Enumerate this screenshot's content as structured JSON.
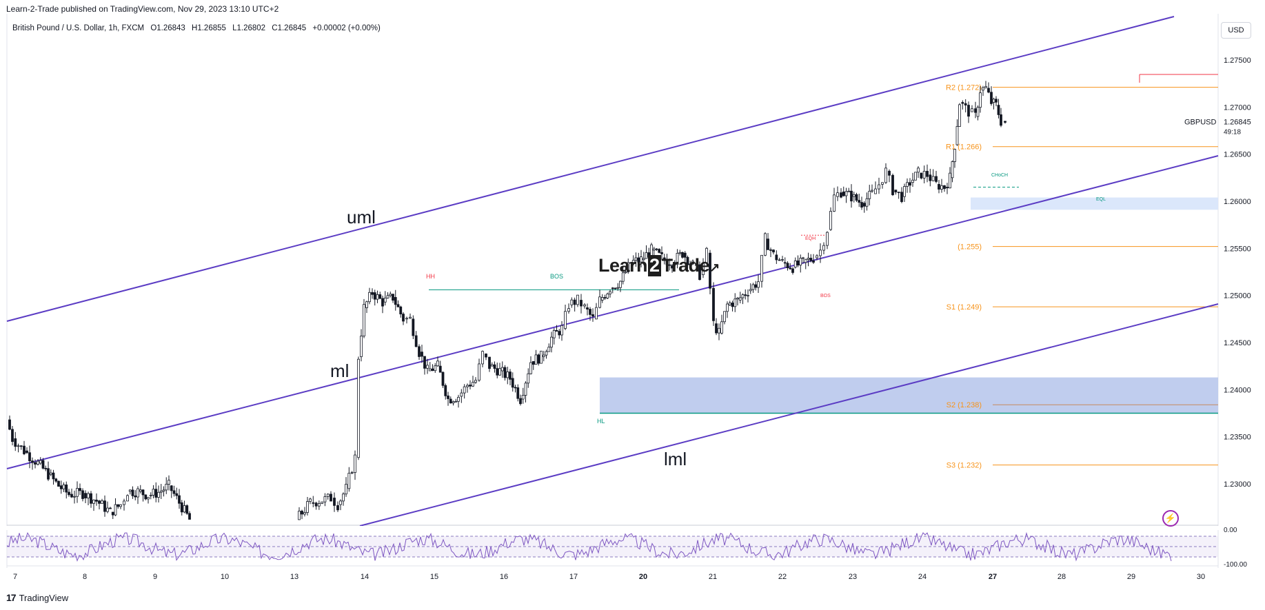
{
  "header": {
    "publisher": "Learn-2-Trade published on TradingView.com, Nov 29, 2023 13:10 UTC+2",
    "symbol": "British Pound / U.S. Dollar, 1h, FXCM",
    "open": "O1.26843",
    "high": "H1.26855",
    "low": "L1.26802",
    "close": "C1.26845",
    "change": "+0.00002 (+0.00%)"
  },
  "currency_button": "USD",
  "footer": {
    "logo_mark": "17",
    "logo_text": "TradingView"
  },
  "brand": {
    "pre": "Learn",
    "two": "2",
    "post": "Trade"
  },
  "icons": {
    "alert": "lightning-icon",
    "logo": "tradingview-logo-icon"
  },
  "colors": {
    "channel": "#5b3cc4",
    "pivot": "#f7931a",
    "structure": "#089981",
    "bearish_marker": "#f23645",
    "zone": "#b9c8ec",
    "rsi": "#7e57c2"
  },
  "chart_data": {
    "type": "candlestick",
    "title": "British Pound / U.S. Dollar, 1h, FXCM",
    "symbol_label": "GBPUSD",
    "last_price": "1.26845",
    "countdown": "49:18",
    "y_ticks": [
      "1.27500",
      "1.27000",
      "1.26500",
      "1.26000",
      "1.25500",
      "1.25000",
      "1.24500",
      "1.24000",
      "1.23500",
      "1.23000"
    ],
    "y_tick_values": [
      1.275,
      1.27,
      1.265,
      1.26,
      1.255,
      1.25,
      1.245,
      1.24,
      1.235,
      1.23
    ],
    "x_ticks": [
      "7",
      "8",
      "9",
      "10",
      "13",
      "14",
      "15",
      "16",
      "17",
      "20",
      "21",
      "22",
      "23",
      "24",
      "27",
      "28",
      "29",
      "30"
    ],
    "x_tick_bold": [
      "20",
      "27"
    ],
    "pivot_levels": [
      {
        "label": "R2 (1.272)",
        "value": 1.2721
      },
      {
        "label": "R1 (1.266)",
        "value": 1.2658
      },
      {
        "label": "(1.255)",
        "value": 1.2552
      },
      {
        "label": "S1 (1.249)",
        "value": 1.2488
      },
      {
        "label": "S2 (1.238)",
        "value": 1.2384
      },
      {
        "label": "S3 (1.232)",
        "value": 1.232
      }
    ],
    "channel_labels": [
      "uml",
      "ml",
      "lml"
    ],
    "channel_lines": [
      {
        "name": "uml",
        "from": [
          "7",
          1.2467
        ],
        "to": [
          "29",
          1.278
        ]
      },
      {
        "name": "ml",
        "from": [
          "7",
          1.2312
        ],
        "to": [
          "30",
          1.2647
        ]
      },
      {
        "name": "lml",
        "from": [
          "13",
          1.225
        ],
        "to": [
          "30",
          1.249
        ]
      }
    ],
    "structure_labels": [
      {
        "text": "HH",
        "kind": "bearish",
        "at": [
          "15",
          1.2513
        ]
      },
      {
        "text": "BOS",
        "kind": "structure",
        "at": [
          "16",
          1.2513
        ]
      },
      {
        "text": "HL",
        "kind": "structure",
        "at": [
          "17",
          1.2369
        ]
      },
      {
        "text": "EQH",
        "kind": "bearish",
        "at": [
          "22",
          1.2562
        ]
      },
      {
        "text": "BOS",
        "kind": "bearish",
        "at": [
          "22",
          1.2495
        ]
      },
      {
        "text": "CHoCH",
        "kind": "structure",
        "at": [
          "27",
          1.2624
        ]
      },
      {
        "text": "EQL",
        "kind": "structure",
        "at": [
          "28",
          1.2599
        ]
      }
    ],
    "zones": [
      {
        "name": "demand-zone",
        "from": 1.2375,
        "to": 1.2413
      },
      {
        "name": "support-zone",
        "from": 1.2591,
        "to": 1.2604
      }
    ],
    "price_path": [
      [
        0,
        1.2368
      ],
      [
        8,
        1.2348
      ],
      [
        25,
        1.2335
      ],
      [
        45,
        1.2322
      ],
      [
        60,
        1.231
      ],
      [
        75,
        1.2298
      ],
      [
        90,
        1.2289
      ],
      [
        110,
        1.229
      ],
      [
        130,
        1.2282
      ],
      [
        150,
        1.227
      ],
      [
        165,
        1.2278
      ],
      [
        175,
        1.2292
      ],
      [
        190,
        1.2292
      ],
      [
        205,
        1.2288
      ],
      [
        220,
        1.2291
      ],
      [
        235,
        1.2298
      ],
      [
        250,
        1.228
      ],
      [
        265,
        1.2262
      ],
      [
        420,
        1.2262
      ],
      [
        440,
        1.228
      ],
      [
        470,
        1.2285
      ],
      [
        480,
        1.2278
      ],
      [
        492,
        1.2295
      ],
      [
        505,
        1.2328
      ],
      [
        510,
        1.2435
      ],
      [
        518,
        1.2487
      ],
      [
        530,
        1.2503
      ],
      [
        545,
        1.2493
      ],
      [
        560,
        1.2498
      ],
      [
        575,
        1.2475
      ],
      [
        585,
        1.2475
      ],
      [
        598,
        1.244
      ],
      [
        610,
        1.242
      ],
      [
        625,
        1.2425
      ],
      [
        640,
        1.239
      ],
      [
        655,
        1.2393
      ],
      [
        668,
        1.2405
      ],
      [
        680,
        1.241
      ],
      [
        690,
        1.2438
      ],
      [
        700,
        1.2425
      ],
      [
        715,
        1.242
      ],
      [
        730,
        1.2412
      ],
      [
        745,
        1.239
      ],
      [
        760,
        1.243
      ],
      [
        775,
        1.2435
      ],
      [
        790,
        1.2455
      ],
      [
        805,
        1.2465
      ],
      [
        815,
        1.249
      ],
      [
        828,
        1.2495
      ],
      [
        838,
        1.2487
      ],
      [
        850,
        1.2475
      ],
      [
        860,
        1.2495
      ],
      [
        875,
        1.2508
      ],
      [
        890,
        1.2515
      ],
      [
        905,
        1.2535
      ],
      [
        920,
        1.2538
      ],
      [
        935,
        1.2548
      ],
      [
        950,
        1.254
      ],
      [
        965,
        1.2535
      ],
      [
        980,
        1.2545
      ],
      [
        995,
        1.2532
      ],
      [
        1005,
        1.2522
      ],
      [
        1015,
        1.2545
      ],
      [
        1025,
        1.247
      ],
      [
        1033,
        1.246
      ],
      [
        1045,
        1.249
      ],
      [
        1060,
        1.2495
      ],
      [
        1075,
        1.2505
      ],
      [
        1090,
        1.2515
      ],
      [
        1100,
        1.256
      ],
      [
        1112,
        1.2543
      ],
      [
        1125,
        1.2535
      ],
      [
        1140,
        1.253
      ],
      [
        1155,
        1.2535
      ],
      [
        1170,
        1.254
      ],
      [
        1180,
        1.2548
      ],
      [
        1190,
        1.257
      ],
      [
        1200,
        1.2605
      ],
      [
        1210,
        1.261
      ],
      [
        1225,
        1.2605
      ],
      [
        1240,
        1.2598
      ],
      [
        1255,
        1.2608
      ],
      [
        1265,
        1.2618
      ],
      [
        1275,
        1.2632
      ],
      [
        1285,
        1.2612
      ],
      [
        1298,
        1.2605
      ],
      [
        1310,
        1.262
      ],
      [
        1322,
        1.263
      ],
      [
        1335,
        1.2628
      ],
      [
        1348,
        1.2618
      ],
      [
        1360,
        1.2615
      ],
      [
        1368,
        1.2625
      ],
      [
        1375,
        1.266
      ],
      [
        1382,
        1.2705
      ],
      [
        1395,
        1.2695
      ],
      [
        1405,
        1.269
      ],
      [
        1412,
        1.2718
      ],
      [
        1420,
        1.272
      ],
      [
        1428,
        1.2705
      ],
      [
        1435,
        1.2702
      ],
      [
        1442,
        1.2685
      ],
      [
        1448,
        1.2684
      ]
    ],
    "rsi": {
      "ticks": [
        "0.00",
        "-100.00"
      ],
      "levels": [
        -20,
        -50,
        -80
      ]
    }
  }
}
